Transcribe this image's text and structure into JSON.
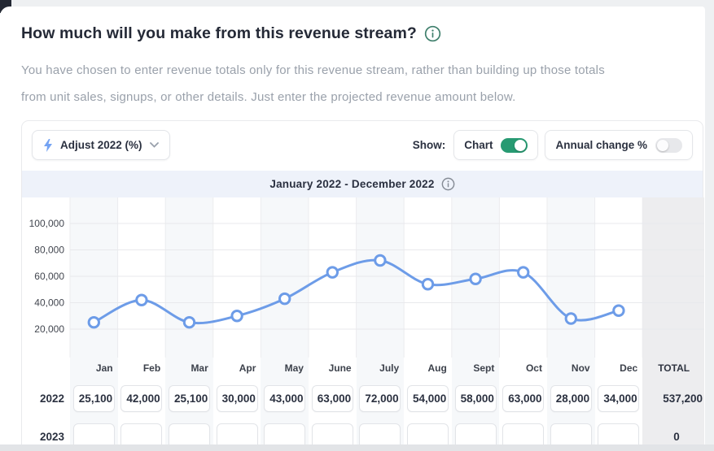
{
  "header": {
    "title": "How much will you make from this revenue stream?",
    "description_lines": [
      "You have chosen to enter revenue totals only for this revenue stream, rather than building up those totals",
      "from unit sales, signups, or other details. Just enter the projected revenue amount below."
    ]
  },
  "toolbar": {
    "adjust_label": "Adjust 2022 (%)",
    "show_label": "Show:",
    "toggles": [
      {
        "label": "Chart",
        "on": true
      },
      {
        "label": "Annual change %",
        "on": false
      }
    ]
  },
  "chart_header": {
    "range_label": "January 2022 - December 2022"
  },
  "chart_data": {
    "type": "line",
    "title": "January 2022 - December 2022",
    "categories": [
      "Jan",
      "Feb",
      "Mar",
      "Apr",
      "May",
      "June",
      "July",
      "Aug",
      "Sept",
      "Oct",
      "Nov",
      "Dec"
    ],
    "values": [
      25100,
      42000,
      25100,
      30000,
      43000,
      63000,
      72000,
      54000,
      58000,
      63000,
      28000,
      34000
    ],
    "ylim": [
      0,
      120000
    ],
    "yticks": [
      20000,
      40000,
      60000,
      80000,
      100000
    ],
    "ytick_labels": [
      "20,000",
      "40,000",
      "60,000",
      "80,000",
      "100,000"
    ],
    "grid": true,
    "legend": false,
    "marker": "open-circle",
    "line_color": "#6d9ce8"
  },
  "table": {
    "total_header": "TOTAL",
    "rows": [
      {
        "year": "2022",
        "cells": [
          "25,100",
          "42,000",
          "25,100",
          "30,000",
          "43,000",
          "63,000",
          "72,000",
          "54,000",
          "58,000",
          "63,000",
          "28,000",
          "34,000"
        ],
        "total": "537,200"
      },
      {
        "year": "2023",
        "cells": [
          "",
          "",
          "",
          "",
          "",
          "",
          "",
          "",
          "",
          "",
          "",
          ""
        ],
        "total": "0"
      }
    ]
  },
  "colors": {
    "accent_green": "#279a72",
    "line_blue": "#6d9ce8",
    "bolt_blue": "#74a3f3",
    "header_band_bg": "#eef2fa",
    "info_teal": "#3f7f6c",
    "grid_line": "#e8e9ec"
  }
}
